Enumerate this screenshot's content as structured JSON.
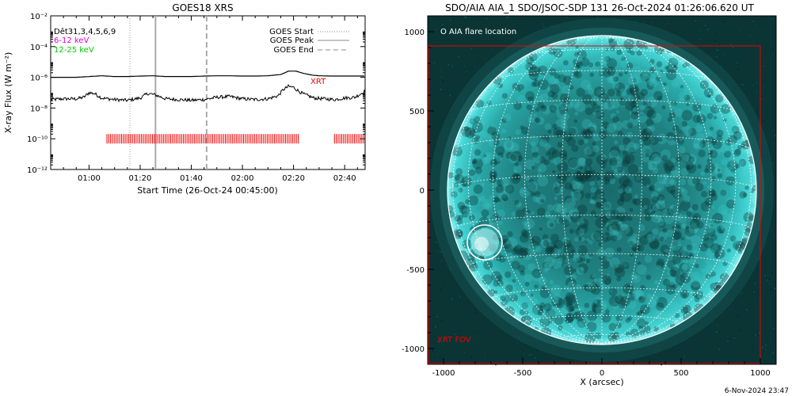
{
  "left_panel": {
    "title": "GOES18 XRS",
    "ylabel": "X-ray Flux (W m⁻²)",
    "xlabel": "Start Time (26-Oct-24 00:45:00)",
    "det_label": "Dêt31,3,4,5,6,9",
    "band1_label": "6-12 keV",
    "band2_label": "12-25 keV",
    "legend": {
      "start": "GOES Start",
      "peak": "GOES Peak",
      "end": "GOES End"
    },
    "xrt_label": "XRT",
    "colors": {
      "band1": "#dd00dd",
      "band2": "#00cc00",
      "xrt": "#ee0000",
      "vline_start": "#999999",
      "vline_peak": "#aaaaaa",
      "vline_end": "#aaaaaa"
    }
  },
  "right_panel": {
    "title": "SDO/AIA AIA_1 SDO/JSOC-SDP 131 26-Oct-2024 01:26:06.620 UT",
    "legend_circle": "O AIA flare location",
    "fov_label": "XRT FOV",
    "xlabel": "X (arcsec)",
    "colors": {
      "sun": "#2ec4c4",
      "fov": "#ee0000"
    }
  },
  "footer_date": "6-Nov-2024 23:47",
  "chart_data": [
    {
      "type": "line",
      "title": "GOES18 XRS",
      "xlabel": "Start Time (26-Oct-24 00:45:00)",
      "ylabel": "X-ray Flux (W m⁻²)",
      "y_scale": "log",
      "ylim": [
        1e-12,
        0.01
      ],
      "y_ticks": [
        "10⁻¹²",
        "10⁻¹⁰",
        "10⁻⁸",
        "10⁻⁶",
        "10⁻⁴",
        "10⁻²"
      ],
      "y_tick_values": [
        -12,
        -10,
        -8,
        -6,
        -4,
        -2
      ],
      "x_range_minutes": [
        45,
        168
      ],
      "x_ticks": [
        "01:00",
        "01:20",
        "01:40",
        "02:00",
        "02:20",
        "02:40"
      ],
      "x_tick_minutes": [
        60,
        80,
        100,
        120,
        140,
        160
      ],
      "series": [
        {
          "name": "",
          "minutes": [
            45,
            50,
            55,
            60,
            65,
            70,
            75,
            80,
            85,
            90,
            95,
            100,
            105,
            110,
            115,
            120,
            125,
            130,
            135,
            138,
            141,
            144,
            147,
            150,
            155,
            160,
            165,
            168
          ],
          "log_flux": [
            -6.0,
            -6.0,
            -6.0,
            -5.95,
            -5.9,
            -5.95,
            -5.95,
            -5.92,
            -5.9,
            -5.95,
            -5.95,
            -5.95,
            -5.92,
            -5.9,
            -5.9,
            -5.92,
            -5.92,
            -5.9,
            -5.82,
            -5.6,
            -5.6,
            -5.75,
            -5.85,
            -5.9,
            -5.92,
            -5.92,
            -5.92,
            -5.92
          ]
        },
        {
          "name": "",
          "minutes": [
            45,
            50,
            55,
            58,
            60,
            62,
            65,
            70,
            75,
            80,
            83,
            86,
            90,
            95,
            100,
            105,
            110,
            115,
            120,
            125,
            130,
            134,
            136,
            138,
            140,
            142,
            144,
            148,
            152,
            156,
            160,
            164,
            168
          ],
          "log_flux": [
            -7.45,
            -7.4,
            -7.4,
            -7.3,
            -7.0,
            -7.05,
            -7.35,
            -7.45,
            -7.5,
            -7.35,
            -7.05,
            -7.15,
            -7.4,
            -7.45,
            -7.5,
            -7.45,
            -7.3,
            -7.25,
            -7.4,
            -7.45,
            -7.4,
            -7.2,
            -6.8,
            -6.6,
            -6.65,
            -6.9,
            -7.1,
            -7.35,
            -7.4,
            -7.45,
            -7.35,
            -7.3,
            -6.9
          ]
        }
      ],
      "vlines_minutes": {
        "start": 76,
        "peak": 86,
        "end": 106
      },
      "xrt_coverage_minutes": [
        [
          67,
          142
        ],
        [
          156,
          168
        ]
      ],
      "xrt_level_log": -10
    },
    {
      "type": "image",
      "title": "SDO/AIA AIA_1 SDO/JSOC-SDP 131 26-Oct-2024 01:26:06.620 UT",
      "xlabel": "X (arcsec)",
      "x_ticks": [
        "-1000",
        "-500",
        "0",
        "500",
        "1000"
      ],
      "x_tick_values": [
        -1000,
        -500,
        0,
        500,
        1000
      ],
      "y_ticks": [
        "1000",
        "500",
        "0",
        "-500",
        "-1000"
      ],
      "y_tick_values": [
        1000,
        500,
        0,
        -500,
        -1000
      ],
      "range_arcsec": [
        -1100,
        1100
      ],
      "sun_radius_arcsec": 975,
      "flare_location_arcsec": [
        -740,
        -330
      ],
      "flare_circle_radius_arcsec": 110,
      "xrt_fov_arcsec": {
        "x": [
          -1100,
          1000
        ],
        "y": [
          -1100,
          910
        ]
      },
      "grid_step_deg": 15
    }
  ]
}
